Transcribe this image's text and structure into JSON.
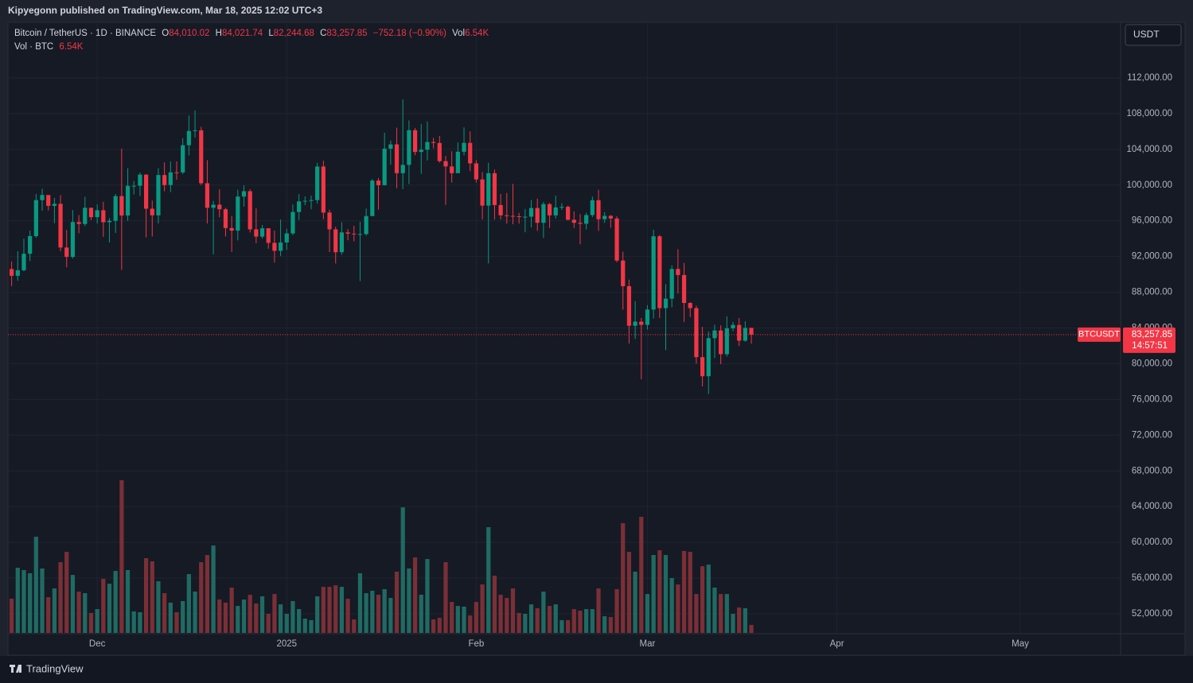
{
  "header": {
    "publisher": "Kipyegonn published on TradingView.com, Mar 18, 2025 12:02 UTC+3",
    "symbol": "Bitcoin / TetherUS · 1D · BINANCE",
    "open_label": "O",
    "open": "84,010.02",
    "high_label": "H",
    "high": "84,021.74",
    "low_label": "L",
    "low": "82,244.68",
    "close_label": "C",
    "close": "83,257.85",
    "change": "−752.18 (−0.90%)",
    "vol_label": "Vol",
    "vol": "6.54K",
    "vol_row_label": "Vol · BTC",
    "vol_row": "6.54K",
    "currency": "USDT",
    "symbol_tag": "BTCUSDT",
    "price_tag": "83,257.85",
    "countdown": "14:57:51"
  },
  "footer": {
    "brand": "TradingView"
  },
  "chart_data": {
    "type": "candlestick",
    "up_color": "#089981",
    "down_color": "#f23645",
    "volume_up_color": "#1f6b63",
    "volume_down_color": "#7b2f36",
    "grid": true,
    "x": [
      0,
      1,
      2,
      3,
      4,
      5,
      6,
      7,
      8,
      9,
      10,
      11,
      12,
      13,
      14,
      15,
      16,
      17,
      18,
      19,
      20,
      21,
      22,
      23,
      24,
      25,
      26,
      27,
      28,
      29,
      30,
      31,
      32,
      33,
      34,
      35,
      36,
      37,
      38,
      39,
      40,
      41,
      42,
      43,
      44,
      45,
      46,
      47,
      48,
      49,
      50,
      51,
      52,
      53,
      54,
      55,
      56,
      57,
      58,
      59,
      60,
      61,
      62,
      63,
      64,
      65,
      66,
      67,
      68,
      69,
      70,
      71,
      72,
      73,
      74,
      75,
      76,
      77,
      78,
      79,
      80,
      81,
      82,
      83,
      84,
      85,
      86,
      87,
      88,
      89,
      90,
      91,
      92,
      93,
      94,
      95,
      96,
      97,
      98,
      99,
      100,
      101,
      102,
      103,
      104,
      105,
      106,
      107,
      108,
      109,
      110,
      111,
      112,
      113,
      114,
      115,
      116,
      117,
      118,
      119,
      120,
      121
    ],
    "xlim": [
      -0.6,
      181.4
    ],
    "xticks": [
      {
        "value": 14,
        "label": "Dec"
      },
      {
        "value": 45,
        "label": "2025"
      },
      {
        "value": 76,
        "label": "Feb"
      },
      {
        "value": 104,
        "label": "Mar"
      },
      {
        "value": 135,
        "label": "Apr"
      },
      {
        "value": 165,
        "label": "May"
      }
    ],
    "ylim": [
      49860,
      118230
    ],
    "yticks": [
      {
        "value": 52000,
        "label": "52,000.00"
      },
      {
        "value": 56000,
        "label": "56,000.00"
      },
      {
        "value": 60000,
        "label": "60,000.00"
      },
      {
        "value": 64000,
        "label": "64,000.00"
      },
      {
        "value": 68000,
        "label": "68,000.00"
      },
      {
        "value": 72000,
        "label": "72,000.00"
      },
      {
        "value": 76000,
        "label": "76,000.00"
      },
      {
        "value": 80000,
        "label": "80,000.00"
      },
      {
        "value": 84000,
        "label": "84,000.00"
      },
      {
        "value": 88000,
        "label": "88,000.00"
      },
      {
        "value": 92000,
        "label": "92,000.00"
      },
      {
        "value": 96000,
        "label": "96,000.00"
      },
      {
        "value": 100000,
        "label": "100,000.00"
      },
      {
        "value": 104000,
        "label": "104,000.00"
      },
      {
        "value": 108000,
        "label": "108,000.00"
      },
      {
        "value": 112000,
        "label": "112,000.00"
      }
    ],
    "open": [
      90600,
      89845,
      90465,
      92310,
      94286,
      98317,
      98892,
      97672,
      97900,
      93010,
      91965,
      95863,
      95643,
      97460,
      96407,
      97185,
      95840,
      96002,
      98768,
      96593,
      99920,
      99924,
      101170,
      97355,
      96610,
      101125,
      100004,
      101424,
      101420,
      104463,
      106058,
      106133,
      100204,
      97461,
      97805,
      97291,
      95186,
      94900,
      98717,
      99313,
      95045,
      94230,
      95163,
      93530,
      92643,
      93576,
      94591,
      96984,
      98174,
      98236,
      98314,
      102078,
      96922,
      95043,
      92484,
      94701,
      94567,
      94489,
      94516,
      96534,
      100505,
      99987,
      104078,
      104556,
      101331,
      102260,
      106143,
      103706,
      103960,
      104819,
      104714,
      102682,
      102087,
      101332,
      103733,
      104722,
      102429,
      100635,
      97700,
      101328,
      97763,
      96612,
      96554,
      96506,
      96444,
      96462,
      97430,
      95778,
      97869,
      96608,
      97500,
      97569,
      96118,
      95780,
      95671,
      96644,
      98305,
      96181,
      96554,
      96258,
      91552,
      88680,
      84250,
      84709,
      84350,
      86064,
      94270,
      86220,
      87281,
      90606,
      89931,
      86801,
      86222,
      80735,
      78596,
      82862,
      83722,
      81066,
      83969,
      84343,
      82579,
      84010.02
    ],
    "high": [
      91450,
      92600,
      94000,
      94900,
      99000,
      99588,
      98767,
      98564,
      98871,
      94973,
      97208,
      96650,
      98693,
      97463,
      97836,
      98130,
      96305,
      99000,
      104088,
      101898,
      100459,
      101399,
      101215,
      98270,
      101895,
      102540,
      102650,
      102650,
      105250,
      107793,
      108353,
      106524,
      102800,
      98233,
      99540,
      97448,
      96538,
      99487,
      99962,
      99538,
      97400,
      95525,
      95174,
      94903,
      96150,
      95100,
      97839,
      98976,
      98734,
      98813,
      102482,
      102724,
      97258,
      95349,
      95836,
      95060,
      95450,
      95890,
      97371,
      100681,
      100782,
      105865,
      104988,
      106422,
      109588,
      107240,
      106394,
      106850,
      107120,
      105286,
      105500,
      103260,
      103783,
      104782,
      106457,
      106012,
      102783,
      101456,
      102500,
      101732,
      99000,
      99120,
      100137,
      96880,
      97323,
      98345,
      98478,
      98119,
      98000,
      98826,
      97972,
      97704,
      97046,
      96753,
      96899,
      98711,
      99475,
      96980,
      96650,
      96500,
      92540,
      89414,
      87000,
      85120,
      86559,
      95000,
      94416,
      88911,
      91000,
      92810,
      91283,
      86897,
      86500,
      84123,
      83617,
      84358,
      84300,
      85309,
      84672,
      85117,
      84756,
      84021.74
    ],
    "low": [
      88700,
      89300,
      90350,
      91500,
      94100,
      97122,
      97160,
      95734,
      92600,
      90791,
      91792,
      94610,
      95407,
      96092,
      95693,
      94200,
      93578,
      94640,
      90500,
      95981,
      98957,
      98771,
      94150,
      94257,
      95700,
      99311,
      99206,
      100600,
      101227,
      103333,
      105321,
      100000,
      95700,
      92232,
      96398,
      94250,
      92520,
      93806,
      97595,
      94700,
      93500,
      94014,
      92882,
      91317,
      92037,
      92732,
      94392,
      96100,
      97735,
      97291,
      97926,
      96181,
      92500,
      91220,
      92206,
      93829,
      93712,
      89256,
      94346,
      96500,
      97254,
      99950,
      102278,
      99651,
      99550,
      100119,
      103339,
      101262,
      102750,
      104106,
      102520,
      97777,
      100279,
      101328,
      103319,
      101560,
      100279,
      96150,
      91231,
      96150,
      96155,
      95676,
      95620,
      95688,
      94713,
      95256,
      94876,
      94088,
      95205,
      96252,
      97223,
      96046,
      95205,
      93388,
      95029,
      96415,
      94871,
      95770,
      95227,
      91349,
      86050,
      82256,
      82786,
      78258,
      83824,
      85050,
      85117,
      81529,
      86334,
      87852,
      84667,
      85218,
      80000,
      77459,
      76606,
      80635,
      79939,
      80818,
      83639,
      81981,
      82457,
      82244.68
    ],
    "close": [
      89845,
      90465,
      92310,
      94286,
      98317,
      98892,
      97672,
      97900,
      93010,
      91965,
      95863,
      95643,
      97460,
      96407,
      97185,
      95840,
      96002,
      98768,
      96593,
      99920,
      99924,
      101170,
      97355,
      96610,
      101125,
      100004,
      101424,
      101420,
      104463,
      106058,
      106133,
      100204,
      97461,
      97805,
      97291,
      95186,
      94900,
      98717,
      99313,
      95045,
      94230,
      95163,
      93530,
      92643,
      93576,
      94591,
      96984,
      98174,
      98236,
      98314,
      102078,
      96922,
      95043,
      92484,
      94701,
      94567,
      94489,
      94516,
      96534,
      100505,
      99987,
      104078,
      104556,
      101331,
      102260,
      106143,
      103706,
      103960,
      104819,
      104714,
      102682,
      102087,
      101332,
      103733,
      104722,
      102429,
      100635,
      97700,
      101328,
      97763,
      96612,
      96554,
      96506,
      96444,
      96462,
      97430,
      95778,
      97869,
      96608,
      97500,
      97569,
      96118,
      95780,
      95671,
      96644,
      98305,
      96181,
      96554,
      96258,
      91552,
      88680,
      84250,
      84709,
      84350,
      86064,
      94270,
      86220,
      87281,
      90606,
      89931,
      86801,
      86222,
      80735,
      78596,
      82862,
      83722,
      81066,
      83969,
      84343,
      82579,
      84010.02,
      83257.85
    ],
    "volume": [
      28100,
      53600,
      51700,
      49100,
      79100,
      53000,
      29400,
      36600,
      58200,
      66700,
      47700,
      34000,
      32700,
      16400,
      19600,
      44500,
      40500,
      51000,
      125600,
      51700,
      17700,
      17000,
      61500,
      58900,
      42500,
      32700,
      24900,
      17000,
      26200,
      48400,
      34000,
      58200,
      64100,
      71900,
      27500,
      24900,
      37300,
      22200,
      27500,
      31400,
      24200,
      30100,
      15700,
      32000,
      23500,
      15700,
      26200,
      19600,
      11800,
      10500,
      30100,
      37900,
      37900,
      39200,
      37900,
      28100,
      11100,
      49100,
      32700,
      34700,
      31400,
      36000,
      28800,
      50400,
      103300,
      53000,
      62100,
      31400,
      60800,
      11100,
      12400,
      58200,
      25500,
      22200,
      21600,
      14400,
      25500,
      39900,
      87000,
      47100,
      31400,
      28800,
      36600,
      16400,
      15700,
      23500,
      20300,
      34000,
      22200,
      23500,
      10500,
      10500,
      19600,
      18300,
      19600,
      19600,
      36600,
      13700,
      13100,
      36000,
      90300,
      66700,
      50400,
      95500,
      32000,
      64100,
      68000,
      64100,
      45100,
      39900,
      67400,
      66700,
      32000,
      54900,
      56200,
      37300,
      32000,
      32000,
      15700,
      20900,
      20300,
      6540
    ]
  }
}
